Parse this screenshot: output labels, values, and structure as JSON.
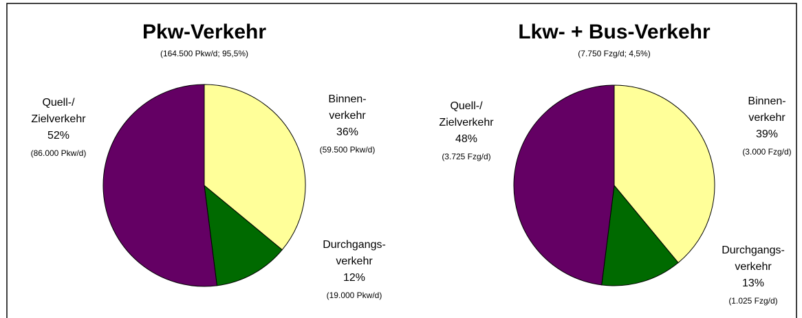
{
  "chart_data": [
    {
      "type": "pie",
      "title": "Pkw-Verkehr",
      "subtitle": "(164.500 Pkw/d; 95,5%)",
      "categories": [
        "Binnen-\nverkehr",
        "Durchgangs-\nverkehr",
        "Quell-/\nZielverkehr"
      ],
      "values": [
        36,
        12,
        52
      ],
      "value_labels": [
        "36%",
        "12%",
        "52%"
      ],
      "details": [
        "(59.500 Pkw/d)",
        "(19.000 Pkw/d)",
        "(86.000 Pkw/d)"
      ],
      "colors": [
        "#ffff99",
        "#006a00",
        "#640064"
      ]
    },
    {
      "type": "pie",
      "title": "Lkw- + Bus-Verkehr",
      "subtitle": "(7.750 Fzg/d; 4,5%)",
      "categories": [
        "Binnen-\nverkehr",
        "Durchgangs-\nverkehr",
        "Quell-/\nZielverkehr"
      ],
      "values": [
        39,
        13,
        48
      ],
      "value_labels": [
        "39%",
        "13%",
        "48%"
      ],
      "details": [
        "(3.000 Fzg/d)",
        "(1.025 Fzg/d)",
        "(3.725 Fzg/d)"
      ],
      "colors": [
        "#ffff99",
        "#006a00",
        "#640064"
      ]
    }
  ]
}
